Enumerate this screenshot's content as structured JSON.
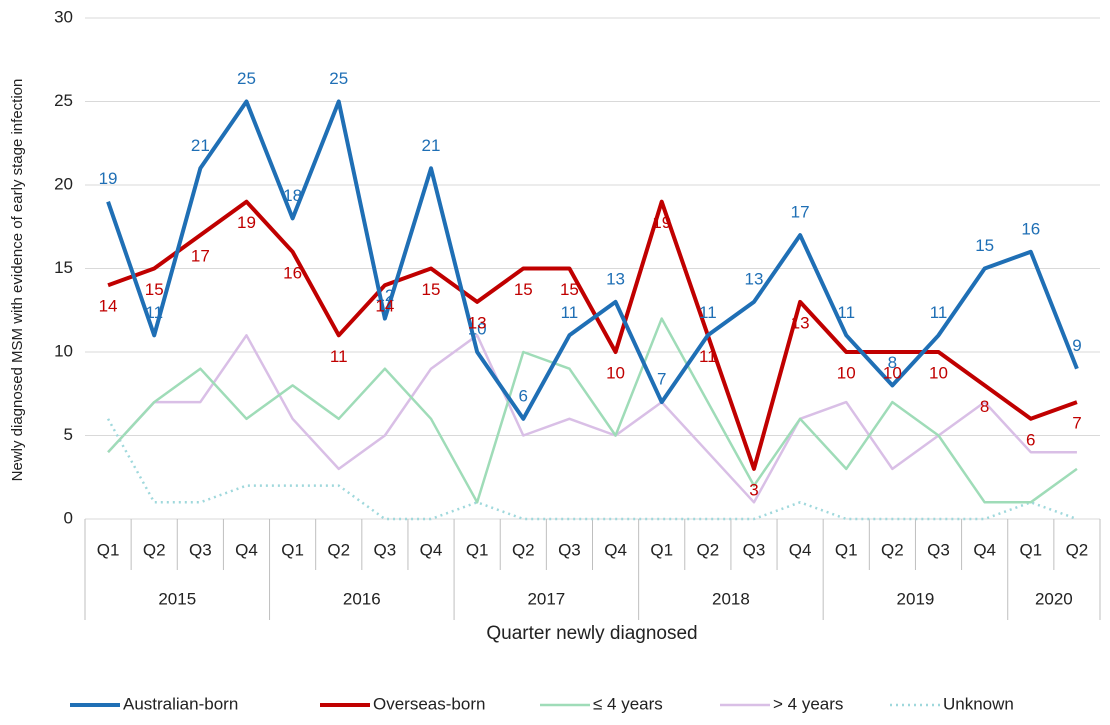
{
  "chart_data": {
    "type": "line",
    "y_label": "Newly  diagnosed MSM with evidence of early stage infection",
    "x_label": "Quarter newly diagnosed",
    "groups": [
      {
        "label": "2015",
        "categories": [
          "Q1",
          "Q2",
          "Q3",
          "Q4"
        ]
      },
      {
        "label": "2016",
        "categories": [
          "Q1",
          "Q2",
          "Q3",
          "Q4"
        ]
      },
      {
        "label": "2017",
        "categories": [
          "Q1",
          "Q2",
          "Q3",
          "Q4"
        ]
      },
      {
        "label": "2018",
        "categories": [
          "Q1",
          "Q2",
          "Q3",
          "Q4"
        ]
      },
      {
        "label": "2019",
        "categories": [
          "Q1",
          "Q2",
          "Q3",
          "Q4"
        ]
      },
      {
        "label": "2020",
        "categories": [
          "Q1",
          "Q2"
        ]
      }
    ],
    "ylim": [
      0,
      30
    ],
    "yticks": [
      0,
      5,
      10,
      15,
      20,
      25,
      30
    ],
    "grid": true,
    "legend": "bottom",
    "series": [
      {
        "name": "Australian-born",
        "color": "#1f6fb5",
        "width": 4,
        "labels": true,
        "values": [
          19,
          11,
          21,
          25,
          18,
          25,
          12,
          21,
          10,
          6,
          11,
          13,
          7,
          11,
          13,
          17,
          11,
          8,
          11,
          15,
          16,
          9
        ]
      },
      {
        "name": "Overseas-born",
        "color": "#c00000",
        "width": 4,
        "labels": true,
        "values": [
          14,
          15,
          17,
          19,
          16,
          11,
          14,
          15,
          13,
          15,
          15,
          10,
          19,
          11,
          3,
          13,
          10,
          10,
          10,
          8,
          6,
          7
        ]
      },
      {
        "name": "≤ 4 years",
        "color": "#9fdcb8",
        "width": 2.5,
        "values": [
          4,
          7,
          9,
          6,
          8,
          6,
          9,
          6,
          1,
          10,
          9,
          5,
          12,
          7,
          2,
          6,
          3,
          7,
          5,
          1,
          1,
          3
        ]
      },
      {
        "name": "> 4 years",
        "color": "#d9bfe6",
        "width": 2.5,
        "values": [
          4,
          7,
          7,
          11,
          6,
          3,
          5,
          9,
          11,
          5,
          6,
          5,
          7,
          4,
          1,
          6,
          7,
          3,
          5,
          7,
          4,
          4
        ]
      },
      {
        "name": "Unknown",
        "color": "#9fd8dc",
        "width": 2.5,
        "dash": true,
        "values": [
          6,
          1,
          1,
          2,
          2,
          2,
          0,
          0,
          1,
          0,
          0,
          0,
          0,
          0,
          0,
          1,
          0,
          0,
          0,
          0,
          1,
          0
        ]
      }
    ]
  }
}
